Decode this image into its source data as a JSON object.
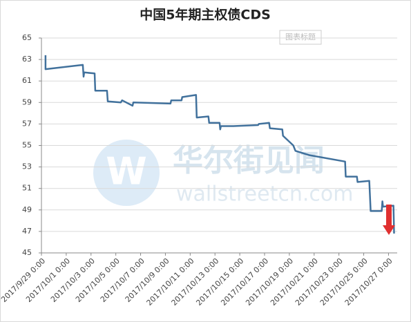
{
  "chart_data": {
    "type": "line",
    "title": "中国5年期主权债CDS",
    "placeholder_title": "图表标题",
    "watermark": [
      "华尔街见闻",
      "wallstreetcn.com"
    ],
    "x": [
      0.33,
      0.33,
      3.34,
      3.4,
      3.45,
      4.29,
      4.34,
      5.29,
      5.35,
      6.4,
      6.51,
      7.35,
      7.41,
      10.41,
      10.47,
      11.3,
      11.36,
      12.47,
      12.53,
      13.47,
      13.53,
      14.37,
      14.42,
      14.48,
      15.48,
      17.48,
      17.54,
      18.37,
      18.43,
      19.43,
      19.49,
      20.32,
      20.49,
      21.6,
      24.5,
      24.55,
      25.45,
      25.5,
      26.45,
      26.56,
      27.45,
      27.51,
      27.56,
      28.4,
      28.45
    ],
    "series": [
      {
        "color": "#41719c",
        "values": [
          63.4,
          62.1,
          62.5,
          61.4,
          61.8,
          61.7,
          60.1,
          60.1,
          59.1,
          59.0,
          59.2,
          58.7,
          59.0,
          58.9,
          59.2,
          59.2,
          59.5,
          59.7,
          57.6,
          57.7,
          57.1,
          57.1,
          56.5,
          56.8,
          56.8,
          56.9,
          57.0,
          57.1,
          56.6,
          56.5,
          55.9,
          55.0,
          54.5,
          54.1,
          53.5,
          52.1,
          52.1,
          51.6,
          51.7,
          48.9,
          48.9,
          49.8,
          49.3,
          49.4,
          46.8
        ]
      }
    ],
    "xlim": [
      0,
      28.7
    ],
    "xticks": [
      {
        "value": 0,
        "label": "2017/9/29 0:00"
      },
      {
        "value": 2,
        "label": "2017/10/1 0:00"
      },
      {
        "value": 4,
        "label": "2017/10/3 0:00"
      },
      {
        "value": 6,
        "label": "2017/10/5 0:00"
      },
      {
        "value": 8,
        "label": "2017/10/7 0:00"
      },
      {
        "value": 10,
        "label": "2017/10/9 0:00"
      },
      {
        "value": 12,
        "label": "2017/10/11 0:00"
      },
      {
        "value": 14,
        "label": "2017/10/13 0:00"
      },
      {
        "value": 16,
        "label": "2017/10/15 0:00"
      },
      {
        "value": 18,
        "label": "2017/10/17 0:00"
      },
      {
        "value": 20,
        "label": "2017/10/19 0:00"
      },
      {
        "value": 22,
        "label": "2017/10/21 0:00"
      },
      {
        "value": 24,
        "label": "2017/10/23 0:00"
      },
      {
        "value": 26,
        "label": "2017/10/25 0:00"
      },
      {
        "value": 28,
        "label": "2017/10/27 0:00"
      }
    ],
    "ylim": [
      45,
      65
    ],
    "yticks": [
      45,
      47,
      49,
      51,
      53,
      55,
      57,
      59,
      61,
      63,
      65
    ],
    "grid": true
  }
}
